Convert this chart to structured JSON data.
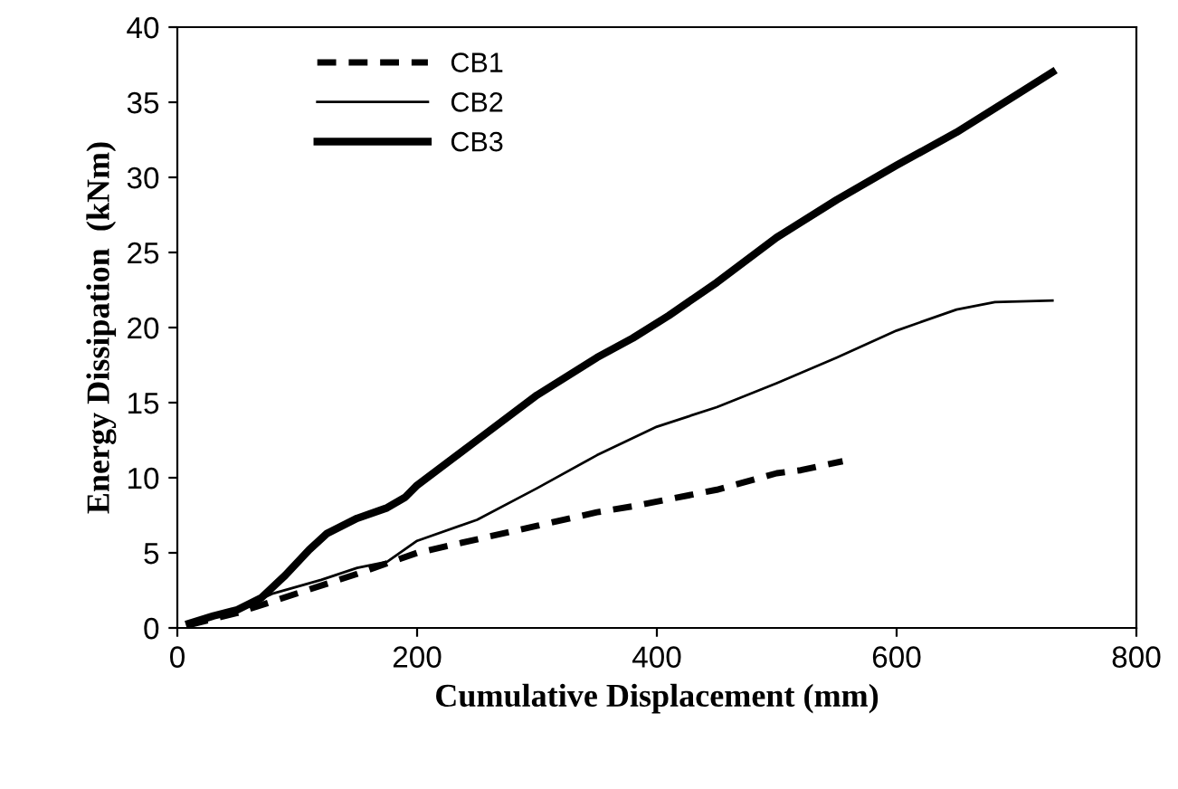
{
  "chart_data": {
    "type": "line",
    "xlabel": "Cumulative Displacement (mm)",
    "ylabel": "Energy Dissipation  (kNm)",
    "xlim": [
      0,
      800
    ],
    "xticks": [
      0,
      200,
      400,
      600,
      800
    ],
    "ylim": [
      0,
      40
    ],
    "yticks": [
      0,
      5,
      10,
      15,
      20,
      25,
      30,
      35,
      40
    ],
    "grid": false,
    "legend": "top left",
    "marker": "none",
    "series": [
      {
        "name": "CB1",
        "color": "#000000",
        "line_style": "dashed",
        "x": [
          10,
          50,
          100,
          150,
          200,
          250,
          300,
          350,
          380,
          450,
          500,
          520,
          555
        ],
        "values": [
          0.2,
          1,
          2.3,
          3.6,
          5,
          5.9,
          6.8,
          7.7,
          8.1,
          9.2,
          10.3,
          10.5,
          11.1
        ]
      },
      {
        "name": "CB2",
        "color": "#000000",
        "line_style": "solid",
        "x": [
          10,
          50,
          80,
          120,
          150,
          175,
          200,
          250,
          300,
          350,
          400,
          450,
          500,
          550,
          600,
          650,
          682,
          730
        ],
        "values": [
          0.2,
          1.2,
          2.3,
          3.2,
          4,
          4.4,
          5.8,
          7.2,
          9.3,
          11.5,
          13.4,
          14.7,
          16.3,
          18,
          19.8,
          21.2,
          21.7,
          21.8
        ]
      },
      {
        "name": "CB3",
        "color": "#000000",
        "line_style": "solid",
        "x": [
          10,
          30,
          50,
          70,
          90,
          110,
          125,
          150,
          175,
          190,
          200,
          250,
          300,
          350,
          380,
          410,
          450,
          500,
          550,
          600,
          650,
          700,
          730
        ],
        "values": [
          0.3,
          0.8,
          1.2,
          2,
          3.5,
          5.2,
          6.3,
          7.3,
          8,
          8.7,
          9.5,
          12.5,
          15.5,
          18,
          19.3,
          20.8,
          23,
          26,
          28.5,
          30.8,
          33,
          35.5,
          37
        ]
      }
    ]
  }
}
